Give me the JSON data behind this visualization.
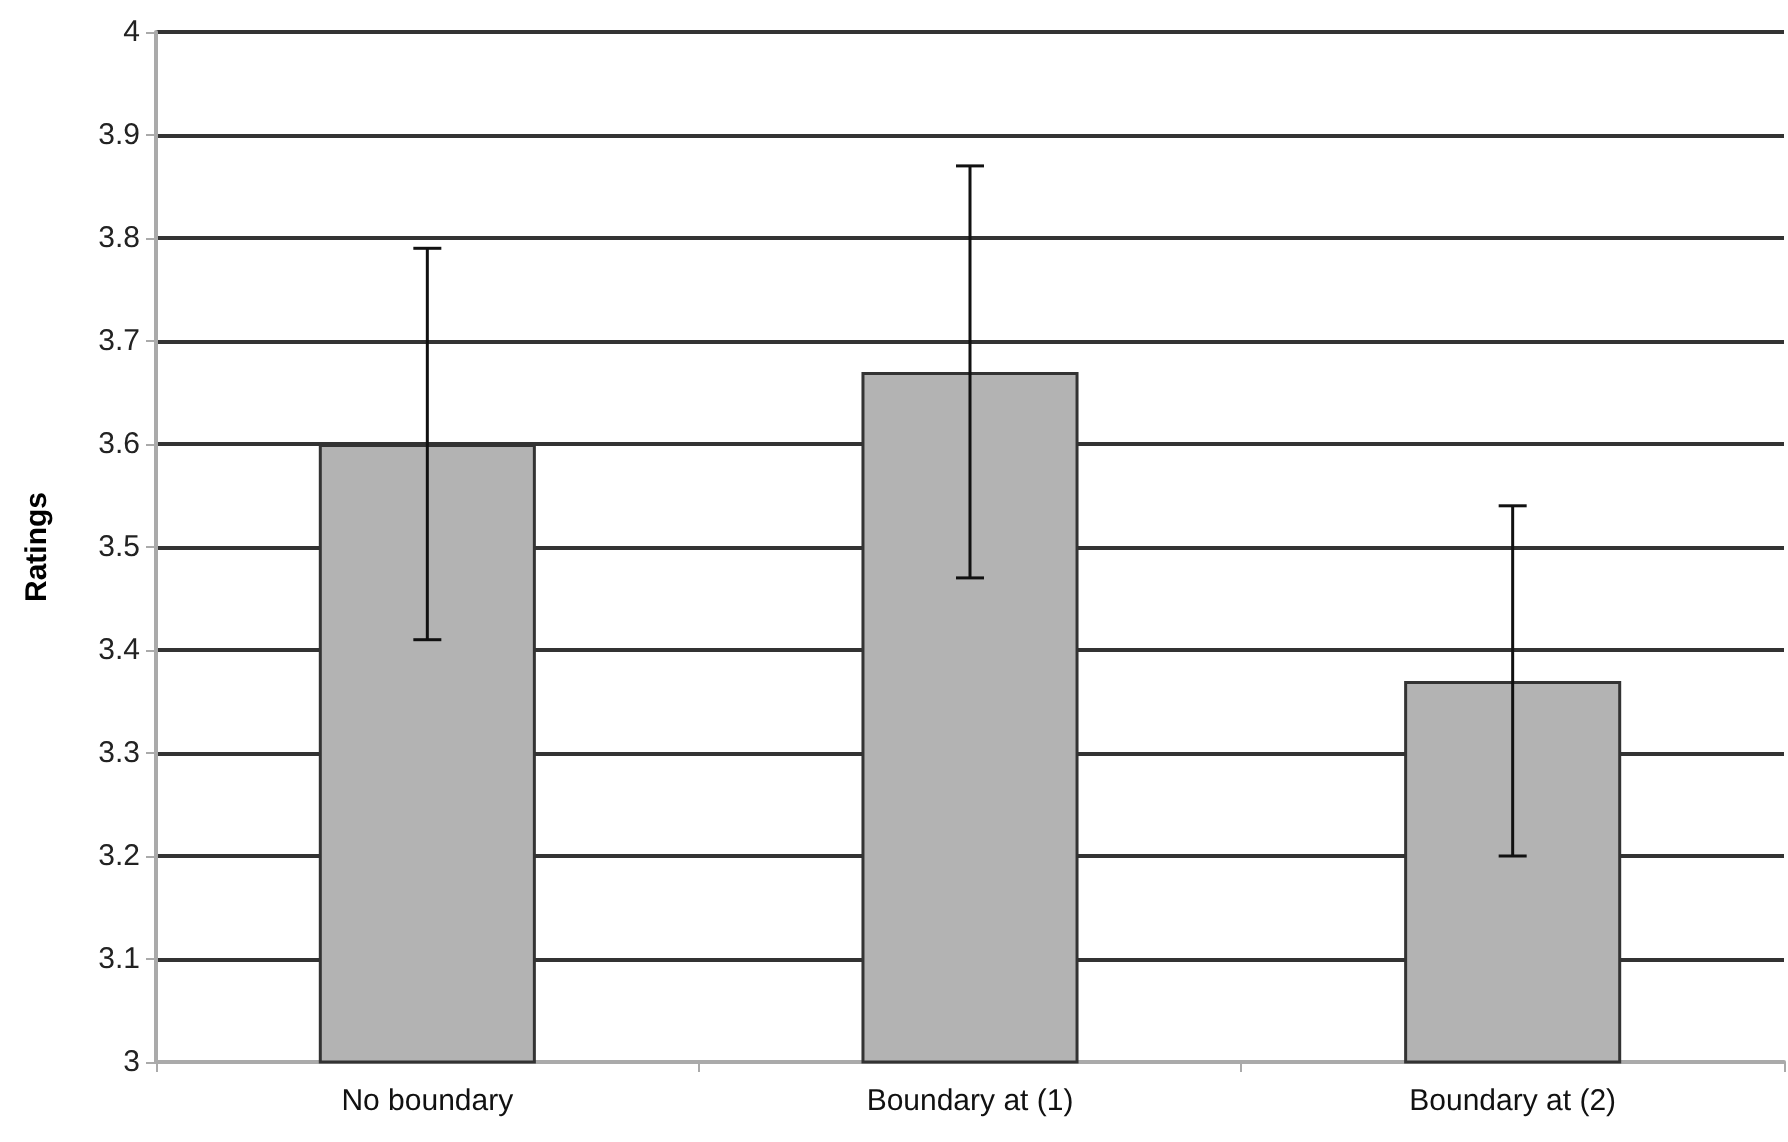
{
  "chart_data": {
    "type": "bar",
    "ylabel": "Ratings",
    "categories": [
      "No boundary",
      "Boundary at (1)",
      "Boundary at (2)"
    ],
    "values": [
      3.6,
      3.67,
      3.37
    ],
    "errors": [
      [
        3.41,
        3.79
      ],
      [
        3.47,
        3.87
      ],
      [
        3.2,
        3.54
      ]
    ],
    "color": "#b3b3b3",
    "ylim": [
      3,
      4
    ],
    "yticks": [
      3,
      3.1,
      3.2,
      3.3,
      3.4,
      3.5,
      3.6,
      3.7,
      3.8,
      3.9,
      4
    ],
    "grid": "y"
  }
}
